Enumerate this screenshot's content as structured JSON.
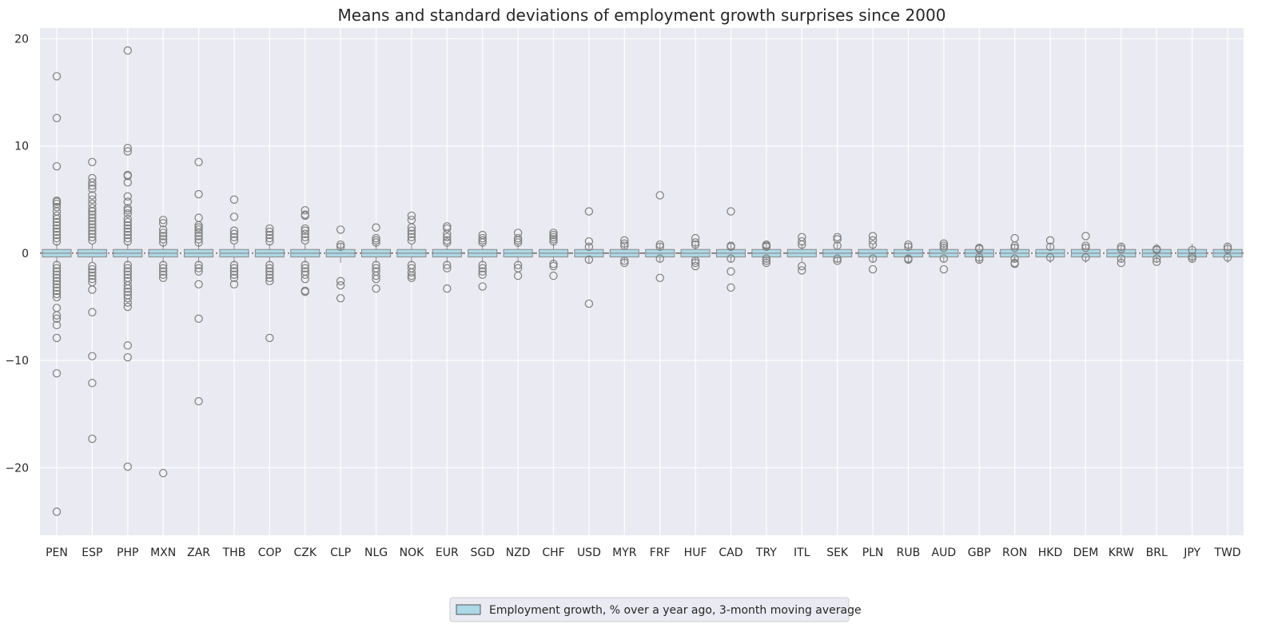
{
  "chart_data": {
    "type": "box",
    "title": "Means and standard deviations of employment growth surprises since 2000",
    "xlabel": "",
    "ylabel": "",
    "ylim": [
      -26.3,
      21.0
    ],
    "yticks": [
      -20,
      -10,
      0,
      10,
      20
    ],
    "ytick_labels": [
      "−20",
      "−10",
      "0",
      "10",
      "20"
    ],
    "grid": true,
    "reference_line_y": 0,
    "legend": {
      "position": "bottom-center",
      "entries": [
        {
          "label": "Employment growth, % over a year ago, 3-month moving average",
          "color": "#add8e6"
        }
      ]
    },
    "colors": {
      "background": "#eaeaf2",
      "grid": "#ffffff",
      "marker_edge": "#7f7f7f",
      "box": "#add8e6"
    },
    "categories": [
      "PEN",
      "ESP",
      "PHP",
      "MXN",
      "ZAR",
      "THB",
      "COP",
      "CZK",
      "CLP",
      "NLG",
      "NOK",
      "EUR",
      "SGD",
      "NZD",
      "CHF",
      "USD",
      "MYR",
      "FRF",
      "HUF",
      "CAD",
      "TRY",
      "ITL",
      "SEK",
      "PLN",
      "RUB",
      "AUD",
      "GBP",
      "RON",
      "HKD",
      "DEM",
      "KRW",
      "BRL",
      "JPY",
      "TWD"
    ],
    "series": [
      {
        "category": "PEN",
        "outliers": [
          16.5,
          12.6,
          8.1,
          4.9,
          4.8,
          4.6,
          4.3,
          3.9,
          3.5,
          3.2,
          2.9,
          2.6,
          2.3,
          2.0,
          1.7,
          1.4,
          1.1,
          -1.1,
          -1.4,
          -1.7,
          -2.0,
          -2.3,
          -2.6,
          -2.9,
          -3.2,
          -3.5,
          -3.8,
          -4.1,
          -5.1,
          -5.8,
          -6.1,
          -6.7,
          -7.9,
          -11.2,
          -24.1
        ]
      },
      {
        "category": "ESP",
        "outliers": [
          8.5,
          7.0,
          6.6,
          6.3,
          6.0,
          5.4,
          5.0,
          4.6,
          4.2,
          3.9,
          3.6,
          3.3,
          3.0,
          2.7,
          2.4,
          2.1,
          1.8,
          1.5,
          1.2,
          -1.2,
          -1.5,
          -1.8,
          -2.1,
          -2.4,
          -2.7,
          -3.4,
          -5.5,
          -9.6,
          -12.1,
          -17.3
        ]
      },
      {
        "category": "PHP",
        "outliers": [
          18.9,
          9.8,
          9.5,
          7.3,
          7.2,
          6.6,
          5.3,
          4.8,
          4.2,
          4.0,
          3.7,
          3.2,
          2.9,
          2.6,
          2.3,
          2.0,
          1.7,
          1.4,
          1.1,
          -1.1,
          -1.4,
          -1.7,
          -2.0,
          -2.3,
          -2.6,
          -3.0,
          -3.3,
          -3.6,
          -3.9,
          -4.2,
          -4.6,
          -5.0,
          -8.6,
          -9.7,
          -19.9
        ]
      },
      {
        "category": "MXN",
        "outliers": [
          3.1,
          2.8,
          2.2,
          1.9,
          1.6,
          1.3,
          1.0,
          -1.1,
          -1.4,
          -1.7,
          -2.0,
          -2.3,
          -20.5
        ]
      },
      {
        "category": "ZAR",
        "outliers": [
          8.5,
          5.5,
          3.3,
          2.6,
          2.4,
          2.2,
          1.9,
          1.6,
          1.3,
          1.0,
          -1.1,
          -1.4,
          -1.7,
          -2.9,
          -6.1,
          -13.8
        ]
      },
      {
        "category": "THB",
        "outliers": [
          5.0,
          3.4,
          2.1,
          1.8,
          1.5,
          1.2,
          -1.1,
          -1.4,
          -1.7,
          -2.0,
          -2.3,
          -2.9
        ]
      },
      {
        "category": "COP",
        "outliers": [
          2.3,
          2.0,
          1.7,
          1.4,
          1.1,
          -1.1,
          -1.4,
          -1.7,
          -2.0,
          -2.3,
          -2.6,
          -7.9
        ]
      },
      {
        "category": "CZK",
        "outliers": [
          4.0,
          3.6,
          3.5,
          2.3,
          2.1,
          1.8,
          1.5,
          1.2,
          -1.1,
          -1.4,
          -1.7,
          -2.0,
          -2.4,
          -3.5,
          -3.6
        ]
      },
      {
        "category": "CLP",
        "outliers": [
          2.2,
          0.8,
          0.6,
          -2.6,
          -3.0,
          -4.2
        ]
      },
      {
        "category": "NLG",
        "outliers": [
          2.4,
          1.4,
          1.2,
          1.0,
          -1.1,
          -1.4,
          -1.7,
          -2.1,
          -2.4,
          -3.3
        ]
      },
      {
        "category": "NOK",
        "outliers": [
          3.5,
          3.1,
          2.4,
          2.1,
          1.8,
          1.5,
          1.2,
          -1.1,
          -1.4,
          -1.8,
          -2.1,
          -2.3
        ]
      },
      {
        "category": "EUR",
        "outliers": [
          2.5,
          2.3,
          1.8,
          1.5,
          1.2,
          1.0,
          -1.1,
          -1.4,
          -3.3
        ]
      },
      {
        "category": "SGD",
        "outliers": [
          1.7,
          1.4,
          1.2,
          1.0,
          -1.1,
          -1.4,
          -1.7,
          -2.0,
          -3.1
        ]
      },
      {
        "category": "NZD",
        "outliers": [
          1.9,
          1.4,
          1.2,
          1.0,
          -1.1,
          -1.4,
          -2.1
        ]
      },
      {
        "category": "CHF",
        "outliers": [
          1.9,
          1.7,
          1.5,
          1.3,
          1.1,
          -1.0,
          -1.2,
          -2.1
        ]
      },
      {
        "category": "USD",
        "outliers": [
          3.9,
          1.1,
          0.6,
          -0.6,
          -4.7
        ]
      },
      {
        "category": "MYR",
        "outliers": [
          1.2,
          0.9,
          0.7,
          -0.7,
          -0.9
        ]
      },
      {
        "category": "FRF",
        "outliers": [
          5.4,
          0.8,
          0.6,
          -0.5,
          -2.3
        ]
      },
      {
        "category": "HUF",
        "outliers": [
          1.4,
          1.0,
          0.8,
          -0.7,
          -0.9,
          -1.2
        ]
      },
      {
        "category": "CAD",
        "outliers": [
          3.9,
          0.7,
          0.6,
          -0.5,
          -1.7,
          -3.2
        ]
      },
      {
        "category": "TRY",
        "outliers": [
          0.8,
          0.7,
          0.6,
          -0.5,
          -0.7,
          -0.9
        ]
      },
      {
        "category": "ITL",
        "outliers": [
          1.5,
          1.1,
          0.8,
          -1.2,
          -1.6
        ]
      },
      {
        "category": "SEK",
        "outliers": [
          1.5,
          1.3,
          0.7,
          -0.5,
          -0.7
        ]
      },
      {
        "category": "PLN",
        "outliers": [
          1.6,
          1.2,
          0.8,
          -0.5,
          -1.5
        ]
      },
      {
        "category": "RUB",
        "outliers": [
          0.8,
          0.6,
          -0.5,
          -0.6
        ]
      },
      {
        "category": "AUD",
        "outliers": [
          0.9,
          0.7,
          0.5,
          -0.5,
          -1.5
        ]
      },
      {
        "category": "GBP",
        "outliers": [
          0.5,
          0.4,
          -0.4,
          -0.6
        ]
      },
      {
        "category": "RON",
        "outliers": [
          1.4,
          0.7,
          0.5,
          -0.5,
          -0.9,
          -1.0
        ]
      },
      {
        "category": "HKD",
        "outliers": [
          1.2,
          0.6,
          -0.4
        ]
      },
      {
        "category": "DEM",
        "outliers": [
          1.6,
          0.7,
          0.5,
          -0.4
        ]
      },
      {
        "category": "KRW",
        "outliers": [
          0.6,
          0.4,
          -0.5,
          -0.9
        ]
      },
      {
        "category": "BRL",
        "outliers": [
          0.4,
          0.3,
          -0.5,
          -0.8
        ]
      },
      {
        "category": "JPY",
        "outliers": [
          0.3,
          -0.3,
          -0.5
        ]
      },
      {
        "category": "TWD",
        "outliers": [
          0.6,
          0.4,
          -0.4
        ]
      }
    ]
  }
}
